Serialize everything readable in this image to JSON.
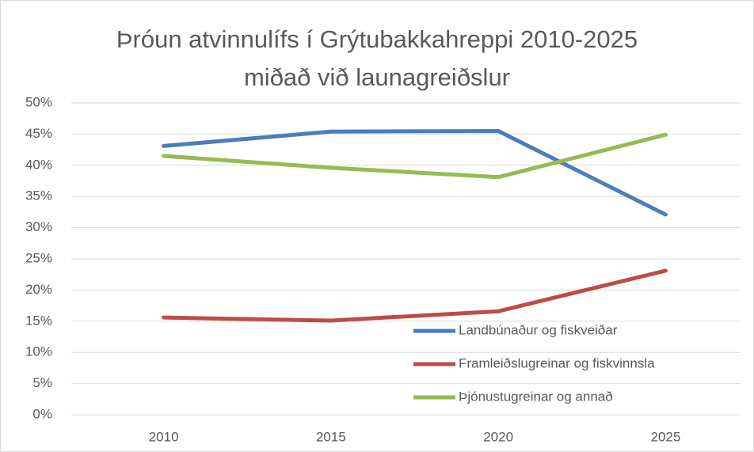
{
  "chart_data": {
    "type": "line",
    "title": [
      "Þróun atvinnulífs í Grýtubakkahreppi 2010-2025",
      "miðað við launagreiðslur"
    ],
    "categories": [
      "2010",
      "2015",
      "2020",
      "2025"
    ],
    "series": [
      {
        "name": "Landbúnaður og fiskveiðar",
        "color": "#4a7ebb",
        "values": [
          43.1,
          45.4,
          45.5,
          32.1
        ]
      },
      {
        "name": "Framleiðslugreinar og fiskvinnsla",
        "color": "#be4b48",
        "values": [
          15.6,
          15.1,
          16.6,
          23.1
        ]
      },
      {
        "name": "Þjónustugreinar og annað",
        "color": "#98b954",
        "values": [
          41.5,
          39.6,
          38.1,
          44.9
        ]
      }
    ],
    "ylim": [
      0,
      50
    ],
    "yticks": [
      {
        "value": 0,
        "label": "0%"
      },
      {
        "value": 5,
        "label": "5%"
      },
      {
        "value": 10,
        "label": "10%"
      },
      {
        "value": 15,
        "label": "15%"
      },
      {
        "value": 20,
        "label": "20%"
      },
      {
        "value": 25,
        "label": "25%"
      },
      {
        "value": 30,
        "label": "30%"
      },
      {
        "value": 35,
        "label": "35%"
      },
      {
        "value": 40,
        "label": "40%"
      },
      {
        "value": 45,
        "label": "45%"
      },
      {
        "value": 50,
        "label": "50%"
      }
    ],
    "grid": true,
    "legend": "lower right"
  }
}
